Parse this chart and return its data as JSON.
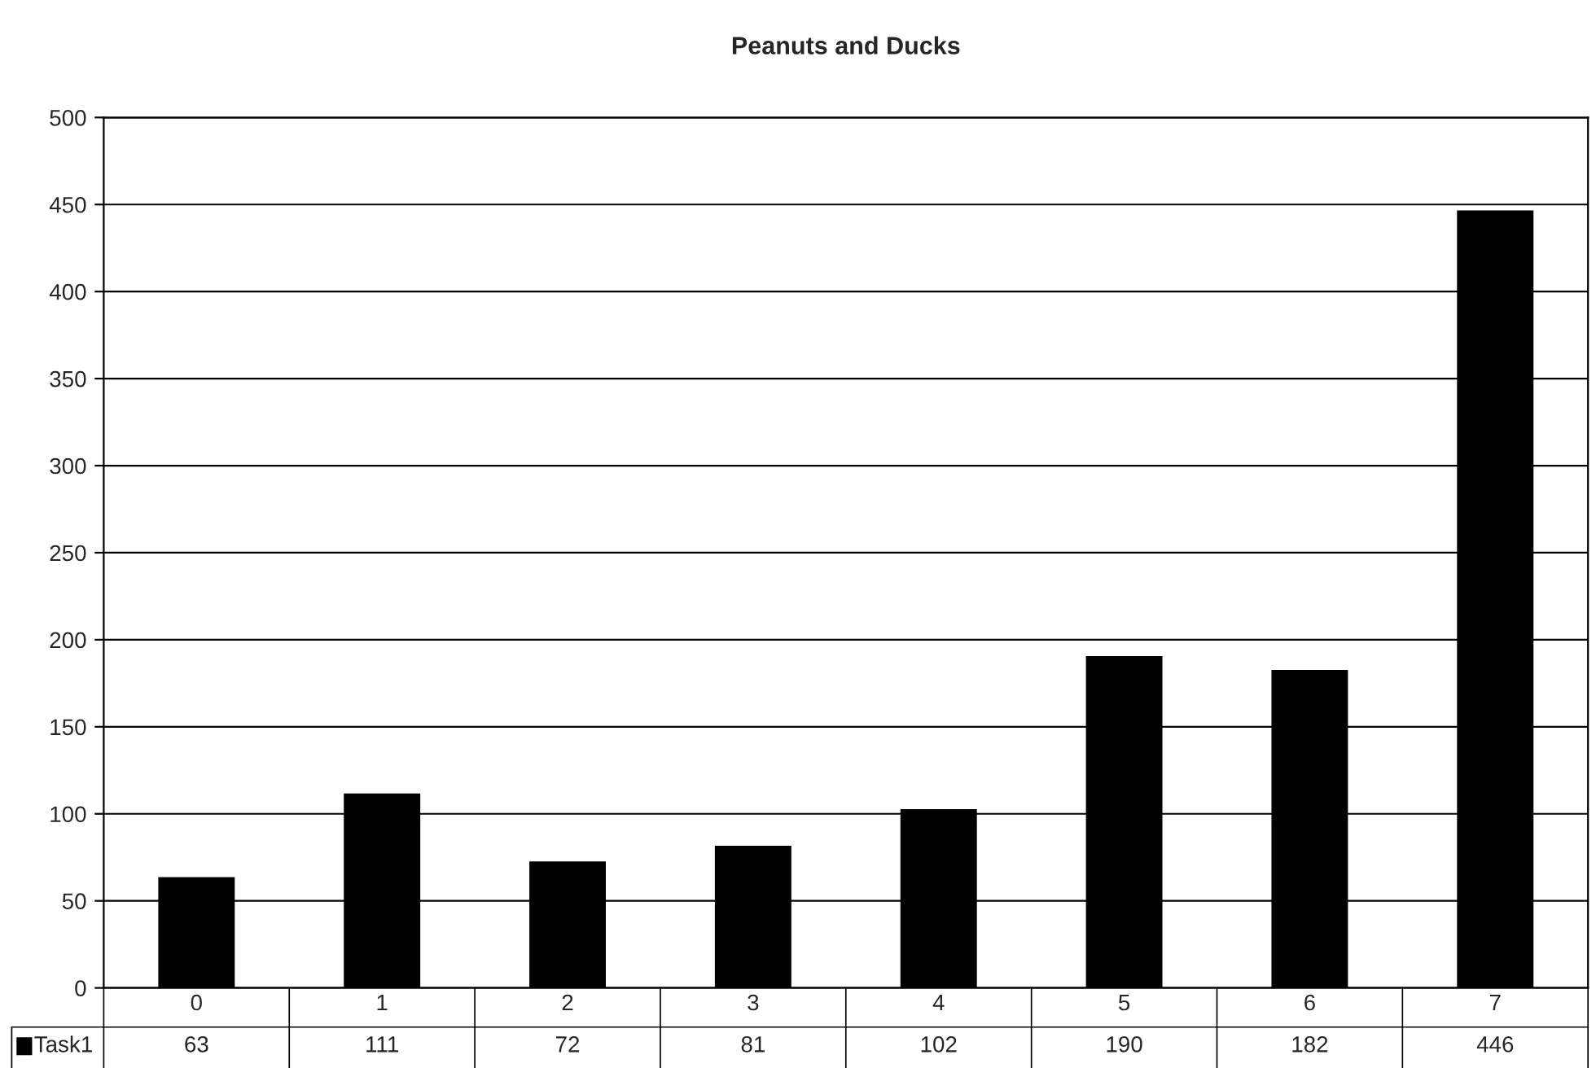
{
  "chart_data": {
    "type": "bar",
    "title": "Peanuts and Ducks",
    "categories": [
      "0",
      "1",
      "2",
      "3",
      "4",
      "5",
      "6",
      "7"
    ],
    "series": [
      {
        "name": "Task1",
        "color": "#000000",
        "values": [
          63,
          111,
          72,
          81,
          102,
          190,
          182,
          446
        ]
      }
    ],
    "ylim": [
      0,
      500
    ],
    "yticks": [
      0,
      50,
      100,
      150,
      200,
      250,
      300,
      350,
      400,
      450,
      500
    ],
    "grid": "y",
    "data_labels": true
  }
}
